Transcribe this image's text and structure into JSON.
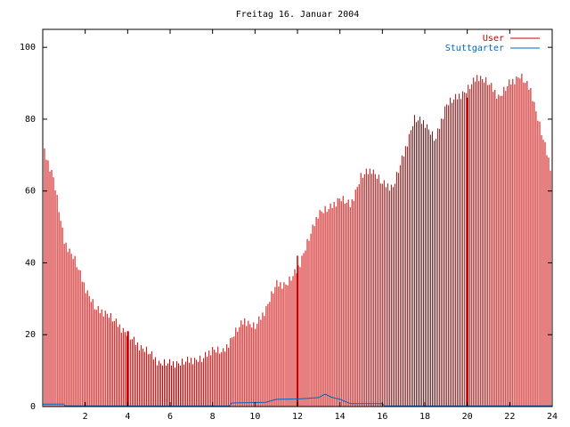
{
  "chart_data": {
    "type": "bar",
    "title": "Freitag 16. Januar 2004",
    "xlabel": "",
    "ylabel": "",
    "xlim": [
      0,
      24
    ],
    "ylim": [
      0,
      105
    ],
    "xticks": [
      "2",
      "4",
      "6",
      "8",
      "10",
      "12",
      "14",
      "16",
      "18",
      "20",
      "22",
      "24"
    ],
    "yticks": [
      "0",
      "20",
      "40",
      "60",
      "80",
      "100"
    ],
    "legend_position": "top-right",
    "series": [
      {
        "name": "User",
        "color": "#cc0000",
        "style": "impulses",
        "points": [
          [
            0.0,
            72
          ],
          [
            0.5,
            64
          ],
          [
            1.0,
            46
          ],
          [
            1.5,
            41
          ],
          [
            2.0,
            33
          ],
          [
            2.5,
            27
          ],
          [
            3.0,
            26
          ],
          [
            3.5,
            23
          ],
          [
            4.0,
            20
          ],
          [
            4.5,
            17
          ],
          [
            5.0,
            15
          ],
          [
            5.5,
            12
          ],
          [
            6.0,
            12
          ],
          [
            6.5,
            12
          ],
          [
            7.0,
            13
          ],
          [
            7.5,
            13
          ],
          [
            8.0,
            16
          ],
          [
            8.5,
            15
          ],
          [
            9.0,
            20
          ],
          [
            9.5,
            24
          ],
          [
            10.0,
            22
          ],
          [
            10.5,
            27
          ],
          [
            11.0,
            34
          ],
          [
            11.5,
            34
          ],
          [
            12.0,
            38
          ],
          [
            12.5,
            46
          ],
          [
            13.0,
            54
          ],
          [
            13.5,
            55
          ],
          [
            14.0,
            58
          ],
          [
            14.5,
            56
          ],
          [
            15.0,
            64
          ],
          [
            15.5,
            66
          ],
          [
            16.0,
            62
          ],
          [
            16.5,
            61
          ],
          [
            17.0,
            70
          ],
          [
            17.5,
            80
          ],
          [
            18.0,
            79
          ],
          [
            18.5,
            74
          ],
          [
            19.0,
            84
          ],
          [
            19.5,
            86
          ],
          [
            20.0,
            88
          ],
          [
            20.5,
            92
          ],
          [
            21.0,
            90
          ],
          [
            21.5,
            86
          ],
          [
            22.0,
            90
          ],
          [
            22.5,
            92
          ],
          [
            23.0,
            88
          ],
          [
            23.5,
            76
          ],
          [
            24.0,
            65
          ]
        ],
        "spikes": [
          [
            4.0,
            21
          ],
          [
            12.0,
            42
          ],
          [
            20.0,
            86
          ]
        ]
      },
      {
        "name": "Stuttgarter",
        "color": "#0066bb",
        "style": "line",
        "points": [
          [
            0.0,
            0.7
          ],
          [
            1.0,
            0.7
          ],
          [
            1.05,
            0.2
          ],
          [
            8.8,
            0.2
          ],
          [
            8.9,
            1.0
          ],
          [
            10.5,
            1.2
          ],
          [
            11.0,
            2.0
          ],
          [
            12.0,
            2.1
          ],
          [
            12.5,
            2.3
          ],
          [
            13.0,
            2.5
          ],
          [
            13.3,
            3.5
          ],
          [
            13.6,
            2.6
          ],
          [
            14.0,
            2.0
          ],
          [
            14.5,
            0.8
          ],
          [
            16.0,
            0.8
          ],
          [
            16.1,
            0.2
          ],
          [
            24.0,
            0.2
          ]
        ]
      }
    ]
  }
}
